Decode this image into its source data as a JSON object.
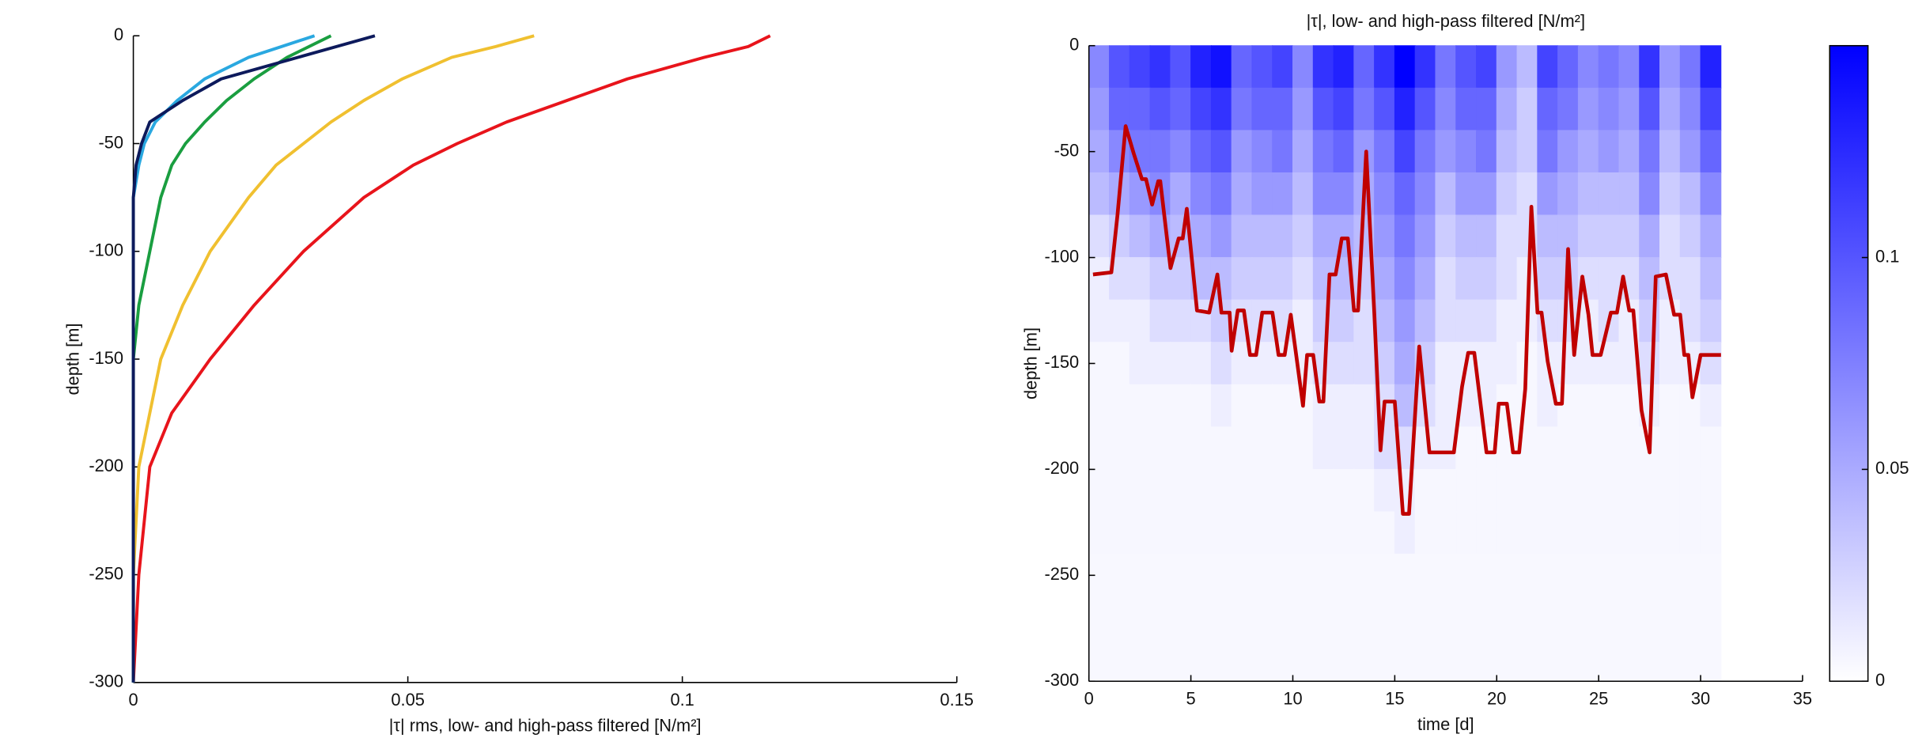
{
  "chart_data": [
    {
      "type": "line",
      "xlabel": "|τ| rms, low- and high-pass filtered [N/m²]",
      "ylabel": "depth [m]",
      "xlim": [
        0,
        0.15
      ],
      "xticks": [
        0,
        0.05,
        0.1,
        0.15
      ],
      "ylim": [
        -300,
        0
      ],
      "yticks": [
        0,
        -50,
        -100,
        -150,
        -200,
        -250,
        -300
      ],
      "y": [
        0,
        -5,
        -10,
        -20,
        -30,
        -40,
        -50,
        -60,
        -75,
        -100,
        -125,
        -150,
        -175,
        -200,
        -250,
        -300
      ],
      "series": [
        {
          "color": "#e8141b",
          "values": [
            0.116,
            0.112,
            0.104,
            0.09,
            0.079,
            0.068,
            0.059,
            0.051,
            0.042,
            0.031,
            0.022,
            0.014,
            0.007,
            0.003,
            0.001,
            0
          ]
        },
        {
          "color": "#f0c030",
          "values": [
            0.073,
            0.066,
            0.058,
            0.049,
            0.042,
            0.036,
            0.031,
            0.026,
            0.021,
            0.014,
            0.009,
            0.005,
            0.003,
            0.001,
            0,
            0
          ]
        },
        {
          "color": "#1a9e40",
          "values": [
            0.036,
            0.032,
            0.028,
            0.022,
            0.017,
            0.013,
            0.0095,
            0.007,
            0.005,
            0.003,
            0.001,
            0,
            0,
            0,
            0,
            0
          ]
        },
        {
          "color": "#2aa8e0",
          "values": [
            0.033,
            0.027,
            0.021,
            0.013,
            0.008,
            0.004,
            0.002,
            0.001,
            0,
            0,
            0,
            0,
            0,
            0,
            0,
            0
          ]
        },
        {
          "color": "#0d1a5c",
          "values": [
            0.044,
            0.037,
            0.03,
            0.016,
            0.009,
            0.003,
            0.0015,
            0.0005,
            0,
            0,
            0,
            0,
            0,
            0,
            0,
            0
          ]
        }
      ]
    },
    {
      "type": "heatmap",
      "title": "|τ|, low- and high-pass filtered [N/m²]",
      "xlabel": "time [d]",
      "ylabel": "depth [m]",
      "xlim": [
        0,
        35
      ],
      "xticks": [
        0,
        5,
        10,
        15,
        20,
        25,
        30,
        35
      ],
      "ylim": [
        -300,
        0
      ],
      "yticks": [
        0,
        -50,
        -100,
        -150,
        -200,
        -250,
        -300
      ],
      "clim": [
        0,
        0.15
      ],
      "cticks": [
        0,
        0.05,
        0.1
      ],
      "x_edges": [
        0,
        1,
        2,
        3,
        4,
        5,
        6,
        7,
        8,
        9,
        10,
        11,
        12,
        13,
        14,
        15,
        16,
        17,
        18,
        19,
        20,
        21,
        22,
        23,
        24,
        25,
        26,
        27,
        28,
        29,
        30,
        31
      ],
      "y_edges": [
        0,
        -20,
        -40,
        -60,
        -80,
        -100,
        -120,
        -140,
        -160,
        -180,
        -200,
        -220,
        -240,
        -260,
        -280,
        -300
      ],
      "z": [
        [
          0.07,
          0.1,
          0.11,
          0.12,
          0.1,
          0.13,
          0.14,
          0.09,
          0.1,
          0.11,
          0.07,
          0.12,
          0.13,
          0.09,
          0.12,
          0.15,
          0.12,
          0.08,
          0.1,
          0.11,
          0.06,
          0.04,
          0.11,
          0.09,
          0.07,
          0.08,
          0.07,
          0.12,
          0.06,
          0.08,
          0.13
        ],
        [
          0.06,
          0.09,
          0.09,
          0.1,
          0.09,
          0.11,
          0.12,
          0.08,
          0.09,
          0.09,
          0.06,
          0.1,
          0.11,
          0.08,
          0.1,
          0.13,
          0.1,
          0.07,
          0.09,
          0.09,
          0.05,
          0.03,
          0.09,
          0.08,
          0.06,
          0.07,
          0.06,
          0.1,
          0.05,
          0.07,
          0.11
        ],
        [
          0.05,
          0.07,
          0.08,
          0.08,
          0.07,
          0.09,
          0.1,
          0.06,
          0.07,
          0.08,
          0.05,
          0.08,
          0.09,
          0.06,
          0.08,
          0.11,
          0.08,
          0.06,
          0.07,
          0.08,
          0.04,
          0.03,
          0.08,
          0.06,
          0.05,
          0.06,
          0.05,
          0.08,
          0.04,
          0.06,
          0.09
        ],
        [
          0.04,
          0.05,
          0.06,
          0.07,
          0.05,
          0.07,
          0.08,
          0.05,
          0.06,
          0.06,
          0.04,
          0.07,
          0.07,
          0.05,
          0.07,
          0.09,
          0.07,
          0.04,
          0.06,
          0.06,
          0.03,
          0.02,
          0.06,
          0.05,
          0.04,
          0.04,
          0.04,
          0.07,
          0.03,
          0.04,
          0.07
        ],
        [
          0.02,
          0.03,
          0.04,
          0.05,
          0.04,
          0.05,
          0.06,
          0.04,
          0.04,
          0.04,
          0.03,
          0.05,
          0.05,
          0.04,
          0.06,
          0.08,
          0.06,
          0.03,
          0.04,
          0.04,
          0.02,
          0.02,
          0.04,
          0.04,
          0.03,
          0.03,
          0.03,
          0.05,
          0.02,
          0.03,
          0.05
        ],
        [
          0.01,
          0.02,
          0.02,
          0.03,
          0.03,
          0.04,
          0.04,
          0.03,
          0.03,
          0.03,
          0.02,
          0.04,
          0.04,
          0.03,
          0.05,
          0.07,
          0.05,
          0.02,
          0.03,
          0.03,
          0.02,
          0.01,
          0.03,
          0.03,
          0.02,
          0.02,
          0.02,
          0.04,
          0.02,
          0.02,
          0.04
        ],
        [
          0.01,
          0.01,
          0.01,
          0.02,
          0.02,
          0.02,
          0.03,
          0.02,
          0.02,
          0.02,
          0.01,
          0.03,
          0.03,
          0.02,
          0.04,
          0.06,
          0.04,
          0.02,
          0.02,
          0.02,
          0.01,
          0.01,
          0.02,
          0.02,
          0.01,
          0.02,
          0.01,
          0.03,
          0.01,
          0.02,
          0.03
        ],
        [
          0.005,
          0.005,
          0.01,
          0.01,
          0.01,
          0.01,
          0.02,
          0.01,
          0.01,
          0.01,
          0.01,
          0.02,
          0.02,
          0.02,
          0.03,
          0.05,
          0.03,
          0.01,
          0.01,
          0.01,
          0.01,
          0.005,
          0.01,
          0.01,
          0.01,
          0.01,
          0.01,
          0.02,
          0.01,
          0.01,
          0.02
        ],
        [
          0.005,
          0.005,
          0.005,
          0.005,
          0.005,
          0.005,
          0.01,
          0.005,
          0.005,
          0.005,
          0.005,
          0.01,
          0.01,
          0.01,
          0.02,
          0.04,
          0.02,
          0.01,
          0.01,
          0.01,
          0.005,
          0.005,
          0.01,
          0.005,
          0.005,
          0.005,
          0.005,
          0.01,
          0.005,
          0.005,
          0.01
        ],
        [
          0.005,
          0.005,
          0.005,
          0.005,
          0.005,
          0.005,
          0.005,
          0.005,
          0.005,
          0.005,
          0.005,
          0.01,
          0.01,
          0.01,
          0.02,
          0.02,
          0.01,
          0.01,
          0.005,
          0.005,
          0.005,
          0.005,
          0.005,
          0.005,
          0.005,
          0.005,
          0.005,
          0.005,
          0.005,
          0.005,
          0.005
        ],
        [
          0.005,
          0.005,
          0.005,
          0.005,
          0.005,
          0.005,
          0.005,
          0.005,
          0.005,
          0.005,
          0.005,
          0.005,
          0.005,
          0.005,
          0.01,
          0.01,
          0.005,
          0.005,
          0.005,
          0.005,
          0.005,
          0.005,
          0.005,
          0.005,
          0.005,
          0.005,
          0.005,
          0.005,
          0.005,
          0.005,
          0.005
        ],
        [
          0.005,
          0.005,
          0.005,
          0.005,
          0.005,
          0.005,
          0.005,
          0.005,
          0.005,
          0.005,
          0.005,
          0.005,
          0.005,
          0.005,
          0.005,
          0.01,
          0.005,
          0.005,
          0.005,
          0.005,
          0.005,
          0.005,
          0.005,
          0.005,
          0.005,
          0.005,
          0.005,
          0.005,
          0.005,
          0.005,
          0.005
        ],
        [
          0.004,
          0.004,
          0.004,
          0.004,
          0.004,
          0.004,
          0.004,
          0.004,
          0.004,
          0.004,
          0.004,
          0.004,
          0.004,
          0.004,
          0.004,
          0.004,
          0.004,
          0.004,
          0.004,
          0.004,
          0.004,
          0.004,
          0.004,
          0.004,
          0.004,
          0.004,
          0.004,
          0.004,
          0.004,
          0.004,
          0.004
        ],
        [
          0.004,
          0.004,
          0.004,
          0.004,
          0.004,
          0.004,
          0.004,
          0.004,
          0.004,
          0.004,
          0.004,
          0.004,
          0.004,
          0.004,
          0.004,
          0.004,
          0.004,
          0.004,
          0.004,
          0.004,
          0.004,
          0.004,
          0.004,
          0.004,
          0.004,
          0.004,
          0.004,
          0.004,
          0.004,
          0.004,
          0.004
        ],
        [
          0.004,
          0.004,
          0.004,
          0.004,
          0.004,
          0.004,
          0.004,
          0.004,
          0.004,
          0.004,
          0.004,
          0.004,
          0.004,
          0.004,
          0.004,
          0.004,
          0.004,
          0.004,
          0.004,
          0.004,
          0.004,
          0.004,
          0.004,
          0.004,
          0.004,
          0.004,
          0.004,
          0.004,
          0.004,
          0.004,
          0.004
        ]
      ],
      "line": {
        "color": "#c00000",
        "x": [
          0.2,
          1.1,
          1.4,
          1.8,
          2.2,
          2.6,
          2.8,
          3.1,
          3.4,
          3.5,
          4.0,
          4.4,
          4.6,
          4.8,
          5.3,
          5.9,
          6.3,
          6.5,
          6.9,
          7.0,
          7.3,
          7.6,
          7.9,
          8.2,
          8.5,
          9.0,
          9.3,
          9.6,
          9.9,
          10.5,
          10.7,
          11.0,
          11.3,
          11.5,
          11.8,
          12.1,
          12.4,
          12.7,
          13.0,
          13.2,
          13.6,
          14.0,
          14.3,
          14.5,
          15.0,
          15.4,
          15.7,
          16.2,
          16.7,
          17.9,
          18.3,
          18.6,
          18.9,
          19.5,
          19.9,
          20.1,
          20.5,
          20.8,
          21.1,
          21.4,
          21.7,
          22.0,
          22.2,
          22.5,
          22.9,
          23.2,
          23.5,
          23.8,
          24.2,
          24.5,
          24.7,
          25.1,
          25.6,
          25.9,
          26.2,
          26.5,
          26.7,
          27.1,
          27.5,
          27.8,
          28.3,
          28.7,
          29.0,
          29.2,
          29.4,
          29.6,
          30.0,
          31.0
        ],
        "y": [
          -108,
          -107,
          -80,
          -38,
          -51,
          -63,
          -63,
          -75,
          -64,
          -64,
          -105,
          -91,
          -91,
          -77,
          -125,
          -126,
          -108,
          -126,
          -126,
          -144,
          -125,
          -125,
          -146,
          -146,
          -126,
          -126,
          -146,
          -146,
          -127,
          -170,
          -146,
          -146,
          -168,
          -168,
          -108,
          -108,
          -91,
          -91,
          -125,
          -125,
          -50,
          -127,
          -191,
          -168,
          -168,
          -221,
          -221,
          -142,
          -192,
          -192,
          -161,
          -145,
          -145,
          -192,
          -192,
          -169,
          -169,
          -192,
          -192,
          -162,
          -76,
          -126,
          -126,
          -149,
          -169,
          -169,
          -96,
          -146,
          -109,
          -127,
          -146,
          -146,
          -126,
          -126,
          -109,
          -125,
          -125,
          -172,
          -192,
          -109,
          -108,
          -127,
          -127,
          -146,
          -146,
          -166,
          -146,
          -146
        ]
      }
    }
  ]
}
